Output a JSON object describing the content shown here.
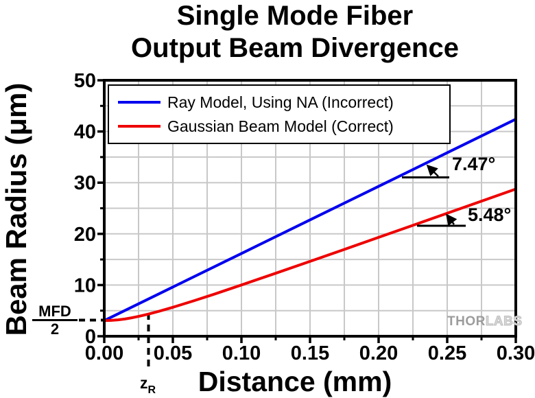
{
  "title": {
    "line1": "Single Mode Fiber",
    "line2": "Output Beam Divergence"
  },
  "axes": {
    "x": {
      "label": "Distance (mm)",
      "range": [
        0,
        0.3
      ],
      "tick_values": [
        0,
        0.05,
        0.1,
        0.15,
        0.2,
        0.25,
        0.3
      ],
      "tick_labels": [
        "0.00",
        "0.05",
        "0.10",
        "0.15",
        "0.20",
        "0.25",
        "0.30"
      ],
      "minor_step": 0.025
    },
    "y": {
      "label": "Beam Radius (μm)",
      "range": [
        0,
        50
      ],
      "tick_values": [
        0,
        10,
        20,
        30,
        40,
        50
      ],
      "tick_labels": [
        "0",
        "10",
        "20",
        "30",
        "40",
        "50"
      ],
      "minor_step": 5
    }
  },
  "legend": {
    "items": [
      {
        "label": "Ray Model, Using NA (Incorrect)",
        "color": "#0000EE"
      },
      {
        "label": "Gaussian Beam Model (Correct)",
        "color": "#EE0000"
      }
    ]
  },
  "annotations": {
    "ray_angle_label": "7.47°",
    "gauss_angle_label": "5.48°",
    "mfd_numerator": "MFD",
    "mfd_denominator": "2",
    "zr_base": "z",
    "zr_sub": "R"
  },
  "watermark": {
    "part1": "THOR",
    "part2": "LABS"
  },
  "colors": {
    "ray_line": "#0000EE",
    "gaussian_line": "#EE0000",
    "grid": "#c8c8c8",
    "frame": "#000000"
  },
  "chart_data": {
    "type": "line",
    "title": "Single Mode Fiber Output Beam Divergence",
    "xlabel": "Distance (mm)",
    "ylabel": "Beam Radius (μm)",
    "xlim": [
      0,
      0.3
    ],
    "ylim": [
      0,
      50
    ],
    "grid": "on (major and minor, light gray)",
    "legend_position": "top-left inside plot",
    "params": {
      "mfd_half_um": 3.05,
      "rayleigh_range_mm": 0.032,
      "ray_half_angle_deg": 7.47,
      "gaussian_divergence_deg": 5.48
    },
    "series": [
      {
        "name": "Ray Model, Using NA (Incorrect)",
        "color": "#0000EE",
        "x": [
          0,
          0.05,
          0.1,
          0.15,
          0.2,
          0.25,
          0.3
        ],
        "y": [
          3.05,
          9.61,
          16.17,
          22.73,
          29.28,
          35.84,
          42.4
        ]
      },
      {
        "name": "Gaussian Beam Model (Correct)",
        "color": "#EE0000",
        "x": [
          0,
          0.005,
          0.01,
          0.015,
          0.02,
          0.025,
          0.032,
          0.04,
          0.05,
          0.065,
          0.08,
          0.1,
          0.125,
          0.15,
          0.175,
          0.2,
          0.225,
          0.25,
          0.275,
          0.3
        ],
        "y": [
          3.05,
          3.09,
          3.2,
          3.37,
          3.6,
          3.87,
          4.31,
          4.88,
          5.66,
          6.91,
          8.21,
          10.01,
          12.3,
          14.62,
          16.96,
          19.31,
          21.66,
          24.02,
          26.39,
          28.76
        ]
      }
    ],
    "annotations": [
      {
        "text": "7.47°",
        "meaning": "half-angle of ray-model line"
      },
      {
        "text": "5.48°",
        "meaning": "far-field divergence of Gaussian beam"
      },
      {
        "text": "MFD/2",
        "meaning": "beam radius at fiber output (z=0)"
      },
      {
        "text": "zR",
        "meaning": "Rayleigh range marker on x-axis (~0.032 mm)"
      }
    ]
  }
}
